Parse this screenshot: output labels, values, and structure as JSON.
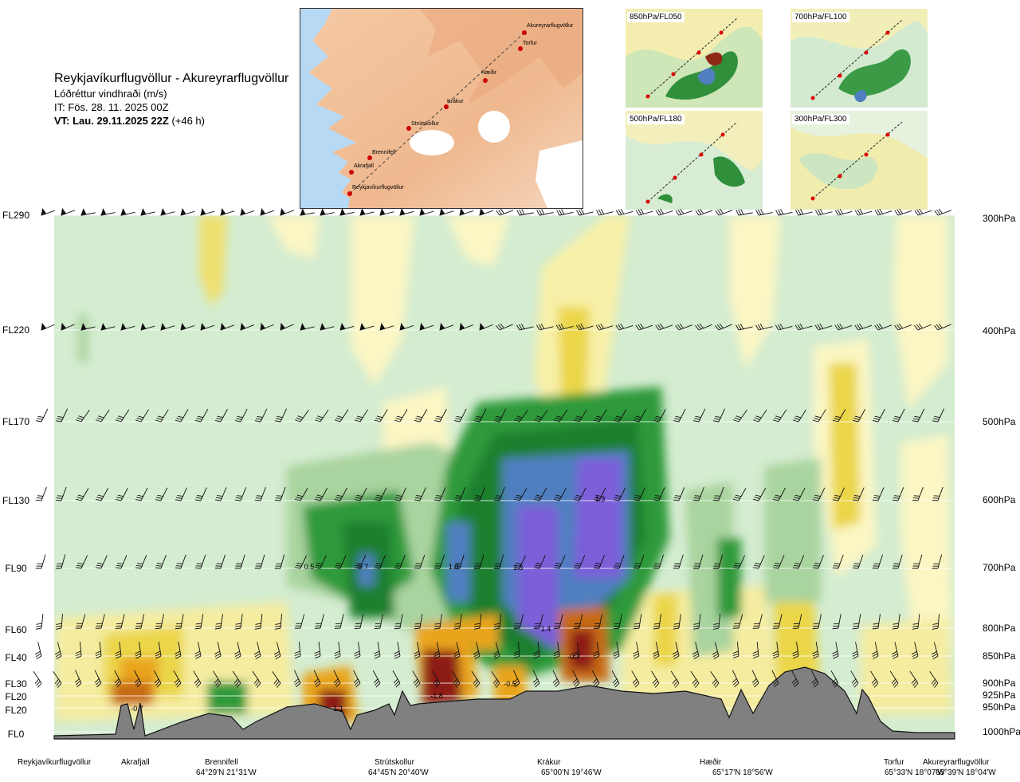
{
  "header": {
    "route": "Reykjavíkurflugvöllur - Akureyrarflugvöllur",
    "quantity": "Lóðréttur vindhraði (m/s)",
    "issued": "IT: Fös. 28. 11. 2025 00Z",
    "valid_bold": "VT: Lau. 29.11.2025 22Z",
    "valid_lead": "(+46 h)"
  },
  "map": {
    "points": [
      {
        "name": "Akureyrarflugvöllur"
      },
      {
        "name": "Torfur"
      },
      {
        "name": "Hæðir"
      },
      {
        "name": "Krákur"
      },
      {
        "name": "Strútskollur"
      },
      {
        "name": "Brennifell"
      },
      {
        "name": "Akrafjall"
      },
      {
        "name": "Reykjavíkurflugvöllur"
      }
    ]
  },
  "mini_maps": [
    {
      "label": "850hPa/FL050"
    },
    {
      "label": "700hPa/FL100"
    },
    {
      "label": "500hPa/FL180"
    },
    {
      "label": "300hPa/FL300"
    }
  ],
  "levels": [
    {
      "fl": "FL290",
      "hpa": "300hPa"
    },
    {
      "fl": "FL220",
      "hpa": "400hPa"
    },
    {
      "fl": "FL170",
      "hpa": "500hPa"
    },
    {
      "fl": "FL130",
      "hpa": "600hPa"
    },
    {
      "fl": "FL90",
      "hpa": "700hPa"
    },
    {
      "fl": "FL60",
      "hpa": "800hPa"
    },
    {
      "fl": "FL40",
      "hpa": "850hPa"
    },
    {
      "fl": "FL30",
      "hpa": "900hPa"
    },
    {
      "fl": "FL20",
      "hpa": "925hPa"
    },
    {
      "fl": "FL20",
      "hpa": "950hPa"
    },
    {
      "fl": "FL0",
      "hpa": "1000hPa"
    }
  ],
  "locations": [
    {
      "name": "Reykjavíkurflugvöllur",
      "coord": ""
    },
    {
      "name": "Akrafjall",
      "coord": ""
    },
    {
      "name": "Brennifell",
      "coord": "64°29'N 21°31'W"
    },
    {
      "name": "Strútskollur",
      "coord": "64°45'N 20°40'W"
    },
    {
      "name": "Krákur",
      "coord": "65°00'N 19°46'W"
    },
    {
      "name": "Hæðir",
      "coord": "65°17'N 18°56'W"
    },
    {
      "name": "Torfur",
      "coord": "65°33'N 18°07'W"
    },
    {
      "name": "Akureyrarflugvöllur",
      "coord": "65°39'N 18°04'W"
    }
  ],
  "chart_data": {
    "type": "heatmap",
    "quantity": "Lóðréttur vindhraði (m/s)",
    "y_levels_hpa": [
      300,
      400,
      500,
      600,
      700,
      800,
      850,
      900,
      925,
      950,
      1000
    ],
    "y_levels_fl": [
      "FL290",
      "FL220",
      "FL170",
      "FL130",
      "FL90",
      "FL60",
      "FL40",
      "FL30",
      "FL20",
      "FL20",
      "FL0"
    ],
    "x_locations": [
      "Reykjavíkurflugvöllur",
      "Akrafjall",
      "Brennifell",
      "Strútskollur",
      "Krákur",
      "Hæðir",
      "Torfur",
      "Akureyrarflugvöllur"
    ],
    "annotations": [
      {
        "label": "0.5",
        "location_near": "Brennifell-Strútskollur",
        "hpa": 700
      },
      {
        "label": "0.7",
        "location_near": "Brennifell-Strútskollur",
        "hpa": 700
      },
      {
        "label": "1.0",
        "location_near": "Strútskollur-Krákur",
        "hpa": 700
      },
      {
        "label": "1.3",
        "location_near": "Krákur",
        "hpa": 700
      },
      {
        "label": "1.3",
        "location_near": "Krákur",
        "hpa": 600
      },
      {
        "label": "1.4",
        "location_near": "Krákur",
        "hpa": 800
      },
      {
        "label": "-0.7",
        "location_near": "Krákur",
        "hpa": 850
      },
      {
        "label": "-0.5",
        "location_near": "Strútskollur-Krákur",
        "hpa": 900
      },
      {
        "label": "-1.8",
        "location_near": "Strútskollur",
        "hpa": 950
      },
      {
        "label": "-1.1",
        "location_near": "Brennifell-Strútskollur",
        "hpa": 950
      },
      {
        "label": "-0.7",
        "location_near": "Akrafjall",
        "hpa": 950
      }
    ],
    "colors": {
      "up_weak": "#d9efd6",
      "up_mid": "#a9d39f",
      "up_strong": "#2e9a3a",
      "up_very": "#1f7f2e",
      "up_blue": "#4f7fbf",
      "up_violet": "#7b5fd9",
      "down_weak": "#fbf4b6",
      "down_mid": "#ebd64a",
      "down_strong": "#e9a41e",
      "down_very": "#c76a18",
      "down_extreme": "#8e1c12",
      "terrain": "#808080"
    }
  }
}
